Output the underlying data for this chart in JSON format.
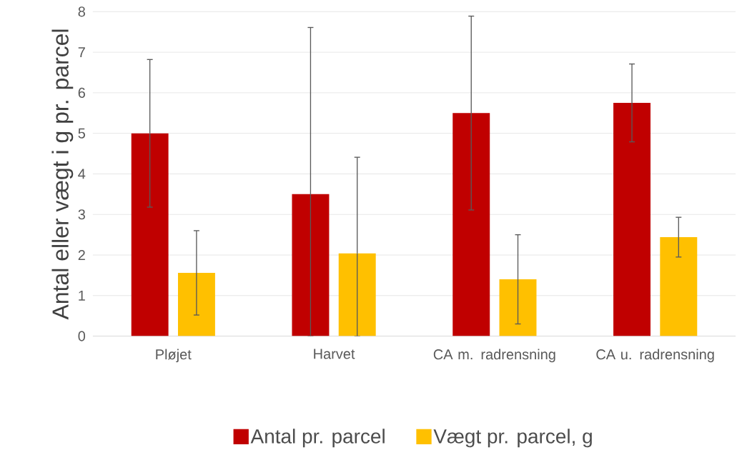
{
  "chart_data": {
    "type": "bar",
    "ylabel": "Antal eller vægt i g pr. parcel",
    "categories": [
      "Pløjet",
      "Harvet",
      "CA m. radrensning",
      "CA u. radrensning"
    ],
    "series": [
      {
        "name": "Antal pr. parcel",
        "color": "#c00000",
        "values": [
          5.0,
          3.5,
          5.5,
          5.75
        ],
        "errors": [
          1.82,
          [
            0,
            7.61
          ],
          2.39,
          0.96
        ]
      },
      {
        "name": "Vægt pr. parcel, g",
        "color": "#ffc000",
        "values": [
          1.56,
          2.04,
          1.4,
          2.44
        ],
        "errors": [
          1.04,
          [
            0,
            4.41
          ],
          1.1,
          0.49
        ]
      }
    ],
    "ylim": [
      0,
      8
    ],
    "yticks": [
      0,
      1,
      2,
      3,
      4,
      5,
      6,
      7,
      8
    ],
    "grid": "y",
    "legend": "bottom"
  }
}
